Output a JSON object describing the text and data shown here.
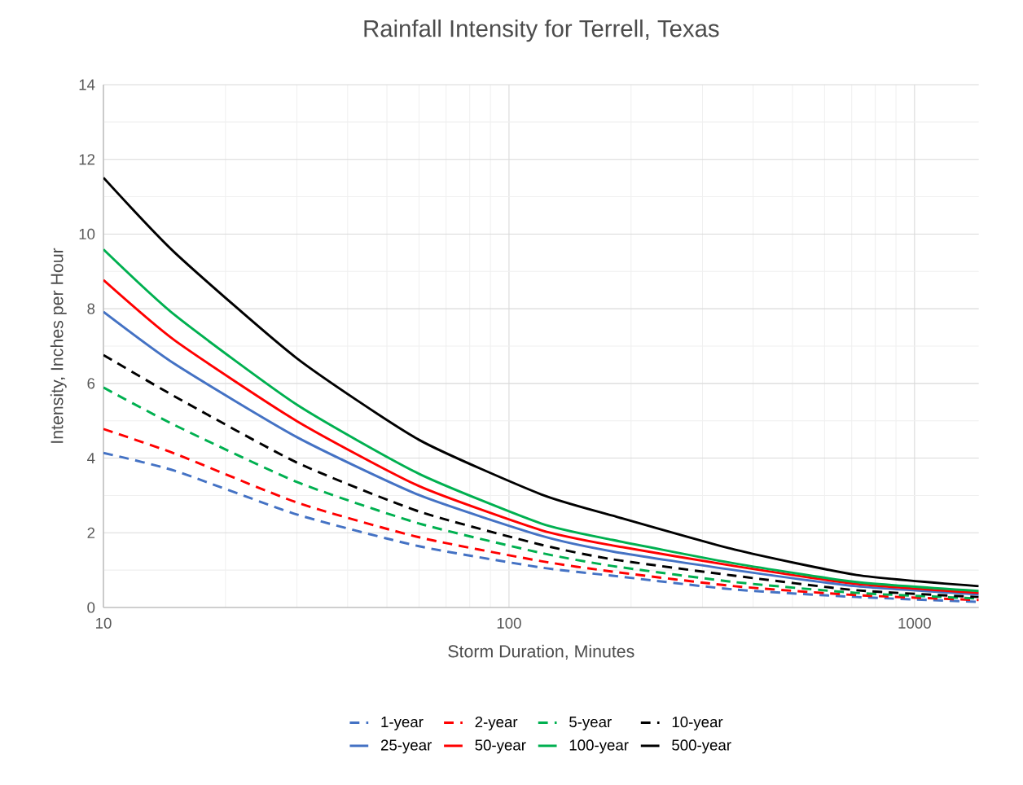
{
  "chart_data": {
    "type": "line",
    "title": "Rainfall Intensity for Terrell, Texas",
    "xlabel": "Storm Duration, Minutes",
    "ylabel": "Intensity, Inches per Hour",
    "log": "x",
    "grid": true,
    "legend": "bottom",
    "marker": "none",
    "xlim": [
      10,
      1440
    ],
    "xticks": [
      10,
      100,
      1000
    ],
    "ylim": [
      0,
      14
    ],
    "yticks": [
      0,
      2,
      4,
      6,
      8,
      10,
      12,
      14
    ],
    "x": [
      10,
      15,
      30,
      60,
      120,
      180,
      360,
      720,
      1440
    ],
    "series": [
      {
        "name": "1-year",
        "color": "#4472c4",
        "line_style": "dashed",
        "values": [
          4.14,
          3.66,
          2.49,
          1.64,
          1.07,
          0.85,
          0.48,
          0.28,
          0.15
        ]
      },
      {
        "name": "2-year",
        "color": "#ff0000",
        "line_style": "dashed",
        "values": [
          4.78,
          4.12,
          2.81,
          1.88,
          1.24,
          0.96,
          0.57,
          0.33,
          0.2
        ]
      },
      {
        "name": "5-year",
        "color": "#00b050",
        "line_style": "dashed",
        "values": [
          5.89,
          4.88,
          3.36,
          2.25,
          1.46,
          1.11,
          0.68,
          0.39,
          0.24
        ]
      },
      {
        "name": "10-year",
        "color": "#000000",
        "line_style": "dashed",
        "values": [
          6.76,
          5.65,
          3.88,
          2.57,
          1.68,
          1.29,
          0.85,
          0.46,
          0.28
        ]
      },
      {
        "name": "25-year",
        "color": "#4472c4",
        "line_style": "solid",
        "values": [
          7.92,
          6.52,
          4.56,
          3.01,
          1.92,
          1.5,
          1.0,
          0.57,
          0.35
        ]
      },
      {
        "name": "50-year",
        "color": "#ff0000",
        "line_style": "solid",
        "values": [
          8.77,
          7.15,
          4.99,
          3.25,
          2.07,
          1.66,
          1.11,
          0.63,
          0.39
        ]
      },
      {
        "name": "100-year",
        "color": "#00b050",
        "line_style": "solid",
        "values": [
          9.59,
          7.83,
          5.43,
          3.58,
          2.25,
          1.81,
          1.18,
          0.68,
          0.44
        ]
      },
      {
        "name": "500-year",
        "color": "#000000",
        "line_style": "solid",
        "values": [
          11.51,
          9.5,
          6.67,
          4.49,
          3.03,
          2.46,
          1.55,
          0.87,
          0.57
        ]
      }
    ]
  }
}
